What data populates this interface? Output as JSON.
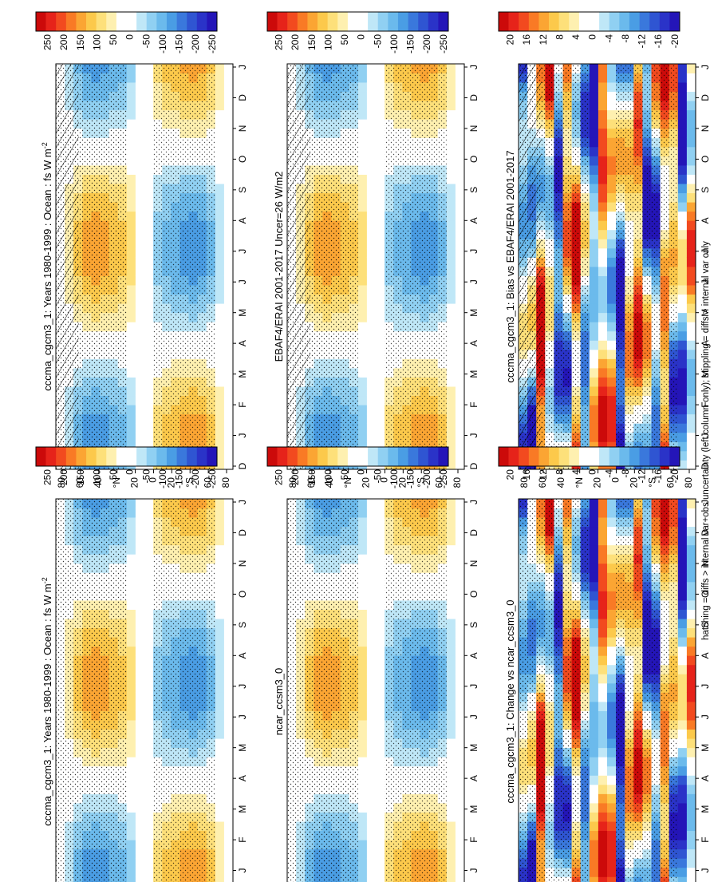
{
  "figure": {
    "footnote": "hatching = diffs > internal var+obs uncertainty (left column only); stippling = diffs > internal var only"
  },
  "chart_data": [
    {
      "type": "heatmap",
      "id": "p1",
      "title": "cccma_cgcm3_1: Years 1980-1999 : Ocean : fs W m",
      "title_sup": "-2",
      "x_ticks": [
        "D",
        "J",
        "F",
        "M",
        "A",
        "M",
        "J",
        "J",
        "A",
        "S",
        "O",
        "N",
        "D",
        "J"
      ],
      "y_ticks": [
        "80",
        "60",
        "40",
        "°N",
        "20",
        "0",
        "20",
        "°S",
        "60",
        "80"
      ],
      "colorbar_ticks": [
        "250",
        "200",
        "150",
        "100",
        "50",
        "0",
        "-50",
        "-100",
        "-150",
        "-200",
        "-250"
      ],
      "amplitude": 260,
      "hatched": true
    },
    {
      "type": "heatmap",
      "id": "p2",
      "title": "cccma_cgcm3_1: Years 1980-1999 : Ocean : fs W m",
      "title_sup": "-2",
      "x_ticks": [
        "D",
        "J",
        "F",
        "M",
        "A",
        "M",
        "J",
        "J",
        "A",
        "S",
        "O",
        "N",
        "D",
        "J"
      ],
      "y_ticks": [
        "80",
        "60",
        "40",
        "°N",
        "20",
        "0",
        "20",
        "°S",
        "60",
        "80"
      ],
      "colorbar_ticks": [
        "250",
        "200",
        "150",
        "100",
        "50",
        "0",
        "-50",
        "-100",
        "-150",
        "-200",
        "-250"
      ],
      "amplitude": 255,
      "hatched": false
    },
    {
      "type": "heatmap",
      "id": "p3",
      "title": "EBAF4/ERAI 2001-2017 Uncer=26 W/m2",
      "title_sup": "",
      "x_ticks": [
        "D",
        "J",
        "F",
        "M",
        "A",
        "M",
        "J",
        "J",
        "A",
        "S",
        "O",
        "N",
        "D",
        "J"
      ],
      "y_ticks": [
        "80",
        "60",
        "40",
        "°N",
        "20",
        "0",
        "20",
        "°S",
        "60",
        "80"
      ],
      "colorbar_ticks": [
        "250",
        "200",
        "150",
        "100",
        "50",
        "0",
        "-50",
        "-100",
        "-150",
        "-200",
        "-250"
      ],
      "amplitude": 245,
      "hatched": true
    },
    {
      "type": "heatmap",
      "id": "p4",
      "title": "ncar_ccsm3_0",
      "title_sup": "",
      "x_ticks": [
        "D",
        "J",
        "F",
        "M",
        "A",
        "M",
        "J",
        "J",
        "A",
        "S",
        "O",
        "N",
        "D",
        "J"
      ],
      "y_ticks": [
        "80",
        "60",
        "40",
        "°N",
        "20",
        "0",
        "20",
        "°S",
        "60",
        "80"
      ],
      "colorbar_ticks": [
        "250",
        "200",
        "150",
        "100",
        "50",
        "0",
        "-50",
        "-100",
        "-150",
        "-200",
        "-250"
      ],
      "amplitude": 250,
      "hatched": false
    },
    {
      "type": "heatmap",
      "id": "p5",
      "title": "cccma_cgcm3_1: Bias vs EBAF4/ERAI 2001-2017",
      "title_sup": "",
      "x_ticks": [
        "D",
        "J",
        "F",
        "M",
        "A",
        "M",
        "J",
        "J",
        "A",
        "S",
        "O",
        "N",
        "D",
        "J"
      ],
      "y_ticks": [
        "80",
        "60",
        "40",
        "°N",
        "20",
        "0",
        "20",
        "°S",
        "60",
        "80"
      ],
      "colorbar_ticks": [
        "20",
        "16",
        "12",
        "8",
        "4",
        "0",
        "-4",
        "-8",
        "-12",
        "-16",
        "-20"
      ],
      "amplitude": 22,
      "hatched": true
    },
    {
      "type": "heatmap",
      "id": "p6",
      "title": "cccma_cgcm3_1: Change vs ncar_ccsm3_0",
      "title_sup": "",
      "x_ticks": [
        "D",
        "J",
        "F",
        "M",
        "A",
        "M",
        "J",
        "J",
        "A",
        "S",
        "O",
        "N",
        "D",
        "J"
      ],
      "y_ticks": [
        "80",
        "60",
        "40",
        "°N",
        "20",
        "0",
        "20",
        "°S",
        "60",
        "80"
      ],
      "colorbar_ticks": [
        "20",
        "16",
        "12",
        "8",
        "4",
        "0",
        "-4",
        "-8",
        "-12",
        "-16",
        "-20"
      ],
      "amplitude": 22,
      "hatched": false
    }
  ]
}
